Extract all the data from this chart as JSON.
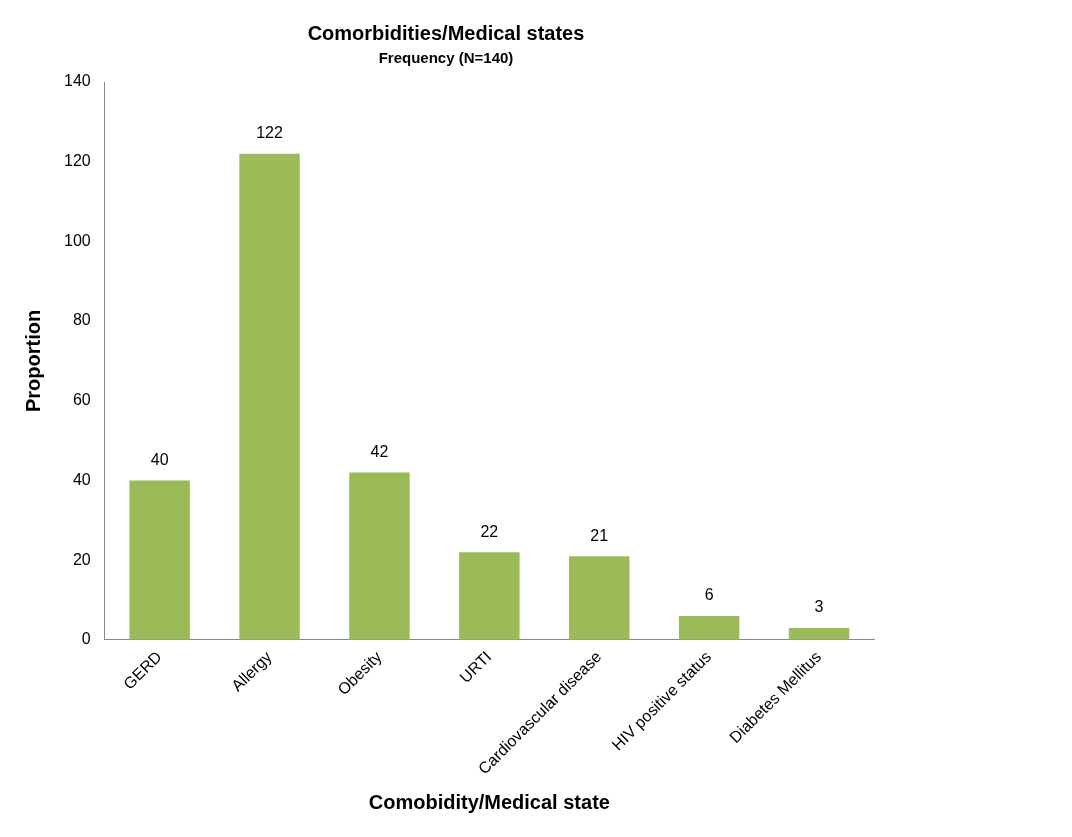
{
  "chart_data": {
    "type": "bar",
    "title": "Comorbidities/Medical states",
    "subtitle": "Frequency (N=140)",
    "xlabel": "Comobidity/Medical state",
    "ylabel": "Proportion",
    "categories": [
      "GERD",
      "Allergy",
      "Obesity",
      "URTI",
      "Cardiovascular disease",
      "HIV positive status",
      "Diabetes Mellitus"
    ],
    "values": [
      40,
      122,
      42,
      22,
      21,
      6,
      3
    ],
    "color": "#9bbb59",
    "ylim": [
      0,
      140
    ],
    "yticks": [
      0,
      20,
      40,
      60,
      80,
      100,
      120,
      140
    ],
    "grid": false,
    "legend": false,
    "data_labels": true
  }
}
